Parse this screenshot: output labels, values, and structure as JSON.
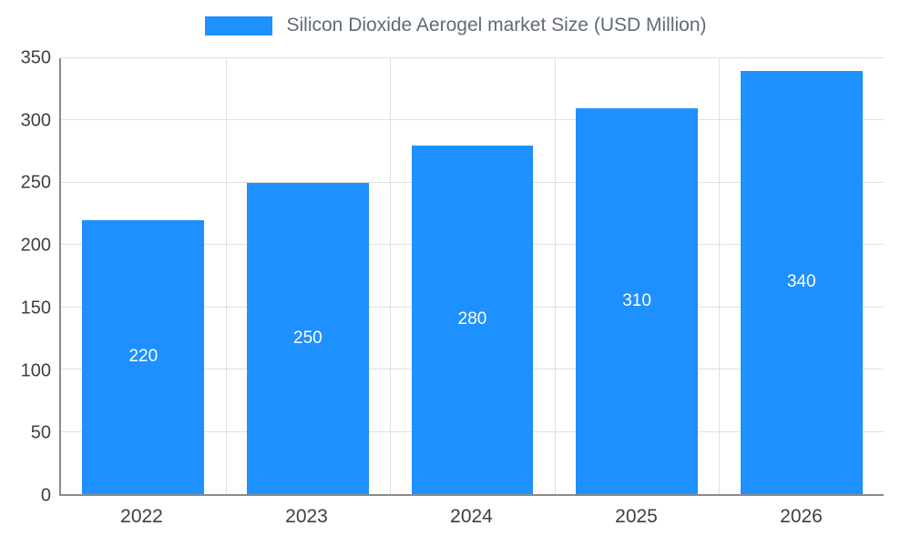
{
  "chart_data": {
    "type": "bar",
    "title": "Silicon Dioxide Aerogel market Size (USD Million)",
    "categories": [
      "2022",
      "2023",
      "2024",
      "2025",
      "2026"
    ],
    "values": [
      220,
      250,
      280,
      310,
      340
    ],
    "xlabel": "",
    "ylabel": "",
    "ylim": [
      0,
      350
    ],
    "y_ticks": [
      0,
      50,
      100,
      150,
      200,
      250,
      300,
      350
    ],
    "grid": true,
    "legend_position": "top",
    "colors": {
      "bar": "#1e90ff",
      "bar_label": "#ffffff",
      "legend_text": "#5f6b76",
      "tick_text": "#3f3f3f",
      "gridline": "#e0e0e0",
      "axis_line": "#8a8a8a"
    }
  }
}
